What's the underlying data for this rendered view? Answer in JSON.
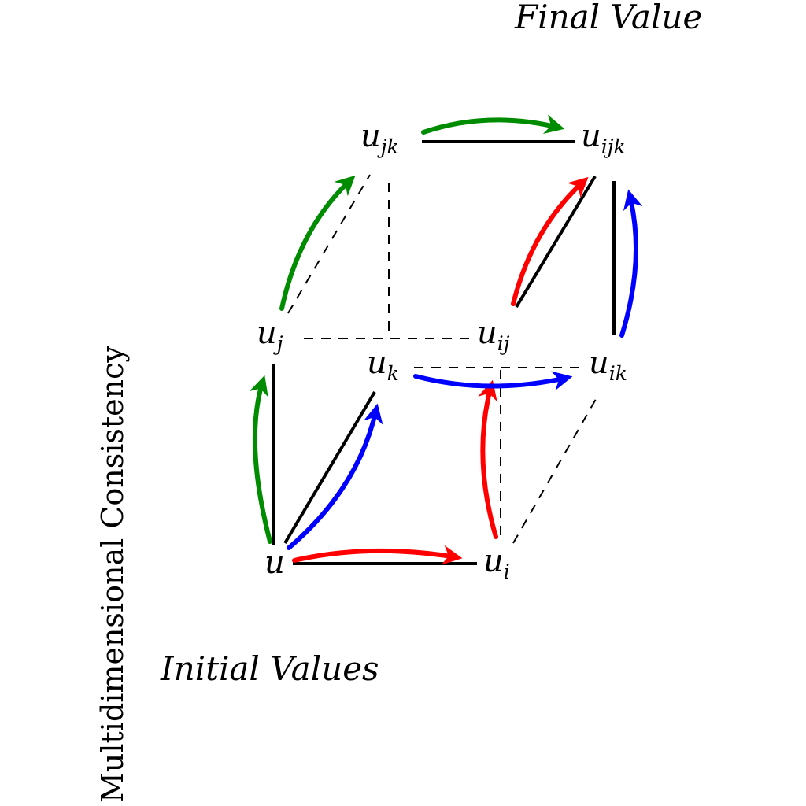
{
  "labels": {
    "final_value": "Final Value",
    "initial_values": "Initial Values",
    "side_title": "Multidimensional Consistency"
  },
  "nodes": {
    "u": {
      "base": "u",
      "sub": ""
    },
    "ui": {
      "base": "u",
      "sub": "i"
    },
    "uj": {
      "base": "u",
      "sub": "j"
    },
    "uk": {
      "base": "u",
      "sub": "k"
    },
    "uij": {
      "base": "u",
      "sub": "ij"
    },
    "uik": {
      "base": "u",
      "sub": "ik"
    },
    "ujk": {
      "base": "u",
      "sub": "jk"
    },
    "uijk": {
      "base": "u",
      "sub": "ijk"
    }
  },
  "colors": {
    "edge": "#000000",
    "red": "#ff0000",
    "green": "#008c00",
    "blue": "#0000ff"
  }
}
